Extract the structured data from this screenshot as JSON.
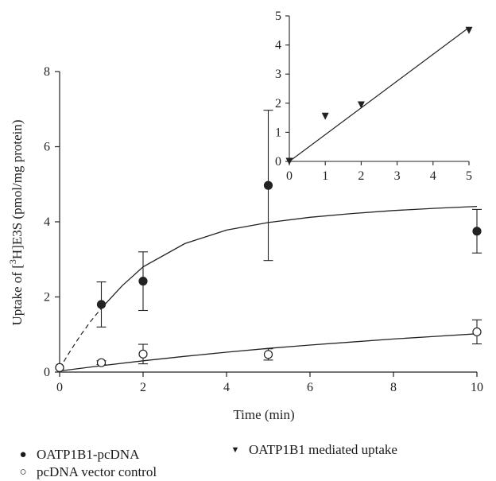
{
  "chart_data": [
    {
      "type": "scatter",
      "x_axis": {
        "label": "Time (min)",
        "range": [
          0,
          10
        ],
        "ticks": [
          0,
          2,
          4,
          6,
          8,
          10
        ]
      },
      "y_axis": {
        "label_prefix": "Uptake of [",
        "label_sup": "3",
        "label_suffix": "H]E3S (pmol/mg protein)",
        "range": [
          0,
          8
        ],
        "ticks": [
          0,
          2,
          4,
          6,
          8
        ]
      },
      "grid": false,
      "legend_placement": "bottom",
      "series": [
        {
          "name": "OATP1B1-pcDNA",
          "marker": "filled-circle",
          "points": [
            {
              "x": 0,
              "y": 0.12
            },
            {
              "x": 1,
              "y": 1.8,
              "err": 0.6
            },
            {
              "x": 2,
              "y": 2.42,
              "err": 0.78
            },
            {
              "x": 5,
              "y": 4.97,
              "err": 2.0
            },
            {
              "x": 10,
              "y": 3.75,
              "err": 0.58
            }
          ],
          "fit_curve": {
            "x": [
              0,
              0.25,
              0.5,
              0.75,
              1,
              1.5,
              2,
              3,
              4,
              5,
              6,
              7,
              8,
              9,
              10
            ],
            "y": [
              0.1,
              0.55,
              0.98,
              1.36,
              1.7,
              2.3,
              2.8,
              3.42,
              3.78,
              3.98,
              4.12,
              4.22,
              4.3,
              4.36,
              4.41
            ],
            "dashed_until_x": 1
          }
        },
        {
          "name": "pcDNA vector control",
          "marker": "open-circle",
          "points": [
            {
              "x": 0,
              "y": 0.12
            },
            {
              "x": 1,
              "y": 0.25,
              "err": 0.05
            },
            {
              "x": 2,
              "y": 0.48,
              "err": 0.26
            },
            {
              "x": 5,
              "y": 0.47,
              "err": 0.15
            },
            {
              "x": 10,
              "y": 1.07,
              "err": 0.32
            }
          ],
          "fit_curve": {
            "x": [
              0,
              1,
              2,
              3,
              4,
              5,
              6,
              7,
              8,
              9,
              10
            ],
            "y": [
              0.03,
              0.17,
              0.3,
              0.42,
              0.53,
              0.63,
              0.72,
              0.8,
              0.88,
              0.95,
              1.02
            ]
          }
        }
      ]
    },
    {
      "type": "scatter",
      "inset": true,
      "x_axis": {
        "label": "",
        "range": [
          0,
          5
        ],
        "ticks": [
          0,
          1,
          2,
          3,
          4,
          5
        ]
      },
      "y_axis": {
        "label": "",
        "range": [
          0,
          5
        ],
        "ticks": [
          0,
          1,
          2,
          3,
          4,
          5
        ]
      },
      "series": [
        {
          "name": "OATP1B1 mediated uptake",
          "marker": "down-triangle",
          "points": [
            {
              "x": 0,
              "y": 0
            },
            {
              "x": 1,
              "y": 1.55
            },
            {
              "x": 2,
              "y": 1.94
            },
            {
              "x": 5,
              "y": 4.5
            }
          ],
          "fit_line": {
            "x": [
              0,
              5
            ],
            "y": [
              0,
              4.6
            ]
          }
        }
      ]
    }
  ],
  "legend": {
    "items": [
      {
        "label": "OATP1B1-pcDNA",
        "symbol": "●"
      },
      {
        "label": "pcDNA vector control",
        "symbol": "○"
      },
      {
        "label": "OATP1B1 mediated uptake",
        "symbol": "▼"
      }
    ]
  }
}
